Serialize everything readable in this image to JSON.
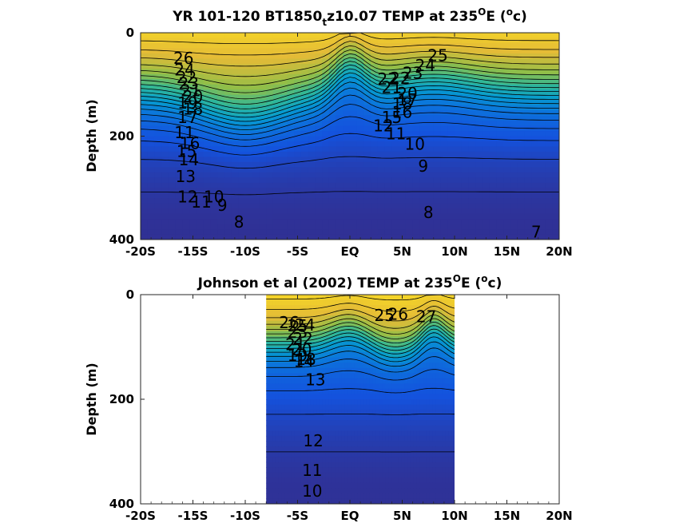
{
  "chart_data": [
    {
      "type": "heatmap",
      "panel": "top",
      "title": {
        "main": "YR 101-120 BT1850",
        "sub": "t",
        "rest": "z10.07 TEMP at 235",
        "sup1": "O",
        "mid": "E (",
        "sup2": "o",
        "end": "c)"
      },
      "ylabel": "Depth (m)",
      "xlabel": "",
      "x_ticks": [
        "-20S",
        "-15S",
        "-10S",
        "-5S",
        "EQ",
        "5N",
        "10N",
        "15N",
        "20N"
      ],
      "x_tick_values": [
        -20,
        -15,
        -10,
        -5,
        0,
        5,
        10,
        15,
        20
      ],
      "y_ticks": [
        "0",
        "200",
        "400"
      ],
      "y_tick_values": [
        0,
        200,
        400
      ],
      "xlim": [
        -20,
        20
      ],
      "ylim": [
        0,
        400
      ],
      "y_reversed": true,
      "x_data_range": [
        -20,
        20
      ],
      "surface_temp_range": [
        25,
        28
      ],
      "deep_temp_range": [
        6,
        8
      ],
      "colormap": "parula",
      "contour_labels": [
        {
          "text": "26",
          "x": -15.9,
          "y": 52
        },
        {
          "text": "24",
          "x": -15.8,
          "y": 74
        },
        {
          "text": "22",
          "x": -15.6,
          "y": 89
        },
        {
          "text": "23",
          "x": -15.4,
          "y": 100
        },
        {
          "text": "21",
          "x": -15.2,
          "y": 114
        },
        {
          "text": "20",
          "x": -15.0,
          "y": 126
        },
        {
          "text": "19",
          "x": -15.5,
          "y": 138
        },
        {
          "text": "18",
          "x": -15.0,
          "y": 150
        },
        {
          "text": "17",
          "x": -15.5,
          "y": 166
        },
        {
          "text": "11",
          "x": -15.8,
          "y": 195
        },
        {
          "text": "16",
          "x": -15.3,
          "y": 216
        },
        {
          "text": "15",
          "x": -15.6,
          "y": 232
        },
        {
          "text": "14",
          "x": -15.4,
          "y": 248
        },
        {
          "text": "13",
          "x": -15.7,
          "y": 280
        },
        {
          "text": "12",
          "x": -15.5,
          "y": 320
        },
        {
          "text": "11",
          "x": -14.2,
          "y": 330
        },
        {
          "text": "10",
          "x": -13.0,
          "y": 320
        },
        {
          "text": "9",
          "x": -12.2,
          "y": 336
        },
        {
          "text": "8",
          "x": -10.6,
          "y": 368
        },
        {
          "text": "25",
          "x": 8.4,
          "y": 46
        },
        {
          "text": "24",
          "x": 7.2,
          "y": 66
        },
        {
          "text": "23",
          "x": 6.0,
          "y": 80
        },
        {
          "text": "22",
          "x": 3.6,
          "y": 92
        },
        {
          "text": "22",
          "x": 4.8,
          "y": 90
        },
        {
          "text": "21",
          "x": 4.0,
          "y": 108
        },
        {
          "text": "20",
          "x": 5.5,
          "y": 120
        },
        {
          "text": "18",
          "x": 5.0,
          "y": 140
        },
        {
          "text": "17",
          "x": 5.5,
          "y": 132
        },
        {
          "text": "16",
          "x": 5.0,
          "y": 156
        },
        {
          "text": "15",
          "x": 4.0,
          "y": 166
        },
        {
          "text": "12",
          "x": 3.2,
          "y": 182
        },
        {
          "text": "11",
          "x": 4.4,
          "y": 198
        },
        {
          "text": "10",
          "x": 6.2,
          "y": 218
        },
        {
          "text": "9",
          "x": 7.0,
          "y": 260
        },
        {
          "text": "8",
          "x": 7.5,
          "y": 350
        },
        {
          "text": "7",
          "x": 17.8,
          "y": 388
        }
      ]
    },
    {
      "type": "heatmap",
      "panel": "bottom",
      "title": {
        "main": "Johnson et al (2002) TEMP at 235",
        "sup1": "O",
        "mid": "E (",
        "sup2": "o",
        "end": "c)"
      },
      "ylabel": "Depth (m)",
      "xlabel": "",
      "x_ticks": [
        "-20S",
        "-15S",
        "-10S",
        "-5S",
        "EQ",
        "5N",
        "10N",
        "15N",
        "20N"
      ],
      "x_tick_values": [
        -20,
        -15,
        -10,
        -5,
        0,
        5,
        10,
        15,
        20
      ],
      "y_ticks": [
        "0",
        "200",
        "400"
      ],
      "y_tick_values": [
        0,
        200,
        400
      ],
      "xlim": [
        -20,
        20
      ],
      "ylim": [
        0,
        400
      ],
      "y_reversed": true,
      "x_data_range": [
        -8,
        10
      ],
      "surface_temp_range": [
        25,
        28
      ],
      "deep_temp_range": [
        9,
        11
      ],
      "colormap": "parula",
      "contour_labels": [
        {
          "text": "26",
          "x": -5.8,
          "y": 56
        },
        {
          "text": "25",
          "x": -5.0,
          "y": 62
        },
        {
          "text": "24",
          "x": -4.3,
          "y": 60
        },
        {
          "text": "23",
          "x": -5.0,
          "y": 74
        },
        {
          "text": "22",
          "x": -4.5,
          "y": 86
        },
        {
          "text": "21",
          "x": -5.2,
          "y": 98
        },
        {
          "text": "20",
          "x": -4.6,
          "y": 108
        },
        {
          "text": "19",
          "x": -5.0,
          "y": 118
        },
        {
          "text": "18",
          "x": -4.2,
          "y": 126
        },
        {
          "text": "14",
          "x": -4.4,
          "y": 130
        },
        {
          "text": "13",
          "x": -3.3,
          "y": 165
        },
        {
          "text": "25",
          "x": 3.3,
          "y": 42
        },
        {
          "text": "26",
          "x": 4.6,
          "y": 40
        },
        {
          "text": "27",
          "x": 7.3,
          "y": 44
        },
        {
          "text": "12",
          "x": -3.5,
          "y": 282
        },
        {
          "text": "11",
          "x": -3.6,
          "y": 338
        },
        {
          "text": "10",
          "x": -3.6,
          "y": 378
        }
      ]
    }
  ]
}
